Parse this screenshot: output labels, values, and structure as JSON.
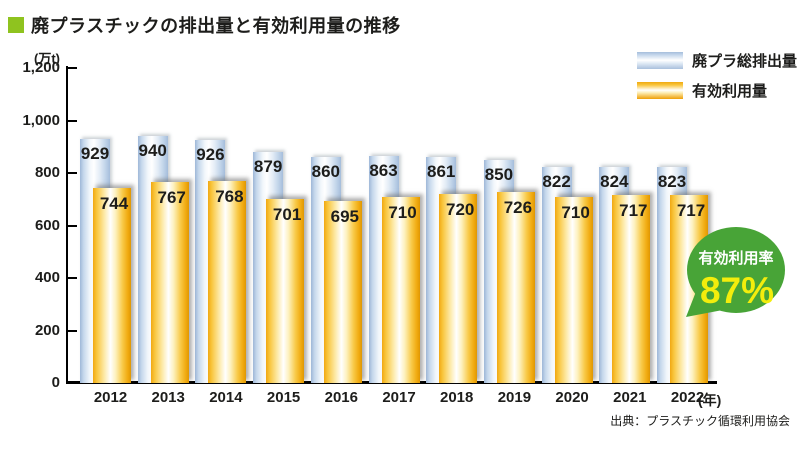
{
  "title": {
    "text": "廃プラスチックの排出量と有効利用量の推移",
    "bullet_color": "#8fc31f"
  },
  "legend": {
    "items": [
      {
        "label": "廃プラ総排出量",
        "swatch": "glossy-blue"
      },
      {
        "label": "有効利用量",
        "swatch": "glossy-yellow"
      }
    ]
  },
  "chart_data": {
    "type": "bar",
    "title": "廃プラスチックの排出量と有効利用量の推移",
    "y_unit_label": "(万t)",
    "x_unit_label": "(年)",
    "categories": [
      "2012",
      "2013",
      "2014",
      "2015",
      "2016",
      "2017",
      "2018",
      "2019",
      "2020",
      "2021",
      "2022"
    ],
    "series": [
      {
        "name": "廃プラ総排出量",
        "values": [
          929,
          940,
          926,
          879,
          860,
          863,
          861,
          850,
          822,
          824,
          823
        ],
        "style": "glossy-blue"
      },
      {
        "name": "有効利用量",
        "values": [
          744,
          767,
          768,
          701,
          695,
          710,
          720,
          726,
          710,
          717,
          717
        ],
        "style": "glossy-yellow"
      }
    ],
    "ylim": [
      0,
      1200
    ],
    "yticks": [
      0,
      200,
      400,
      600,
      800,
      1000,
      1200
    ],
    "ytick_labels": [
      "0",
      "200",
      "400",
      "600",
      "800",
      "1,000",
      "1,200"
    ],
    "legend_position": "top-right",
    "grid": false
  },
  "badge": {
    "label": "有効利用率",
    "value": "87%",
    "bg_color": "#48a437",
    "label_color": "#ffffff",
    "value_color": "#f3ed0c"
  },
  "source": "出典：プラスチック循環利用協会",
  "colors": {
    "axis": "#000000",
    "text": "#1d1d1b",
    "bar_blue_edge": "#a5bddb",
    "bar_yellow_edge": "#f0a90f",
    "highlight": "#ffffff"
  }
}
